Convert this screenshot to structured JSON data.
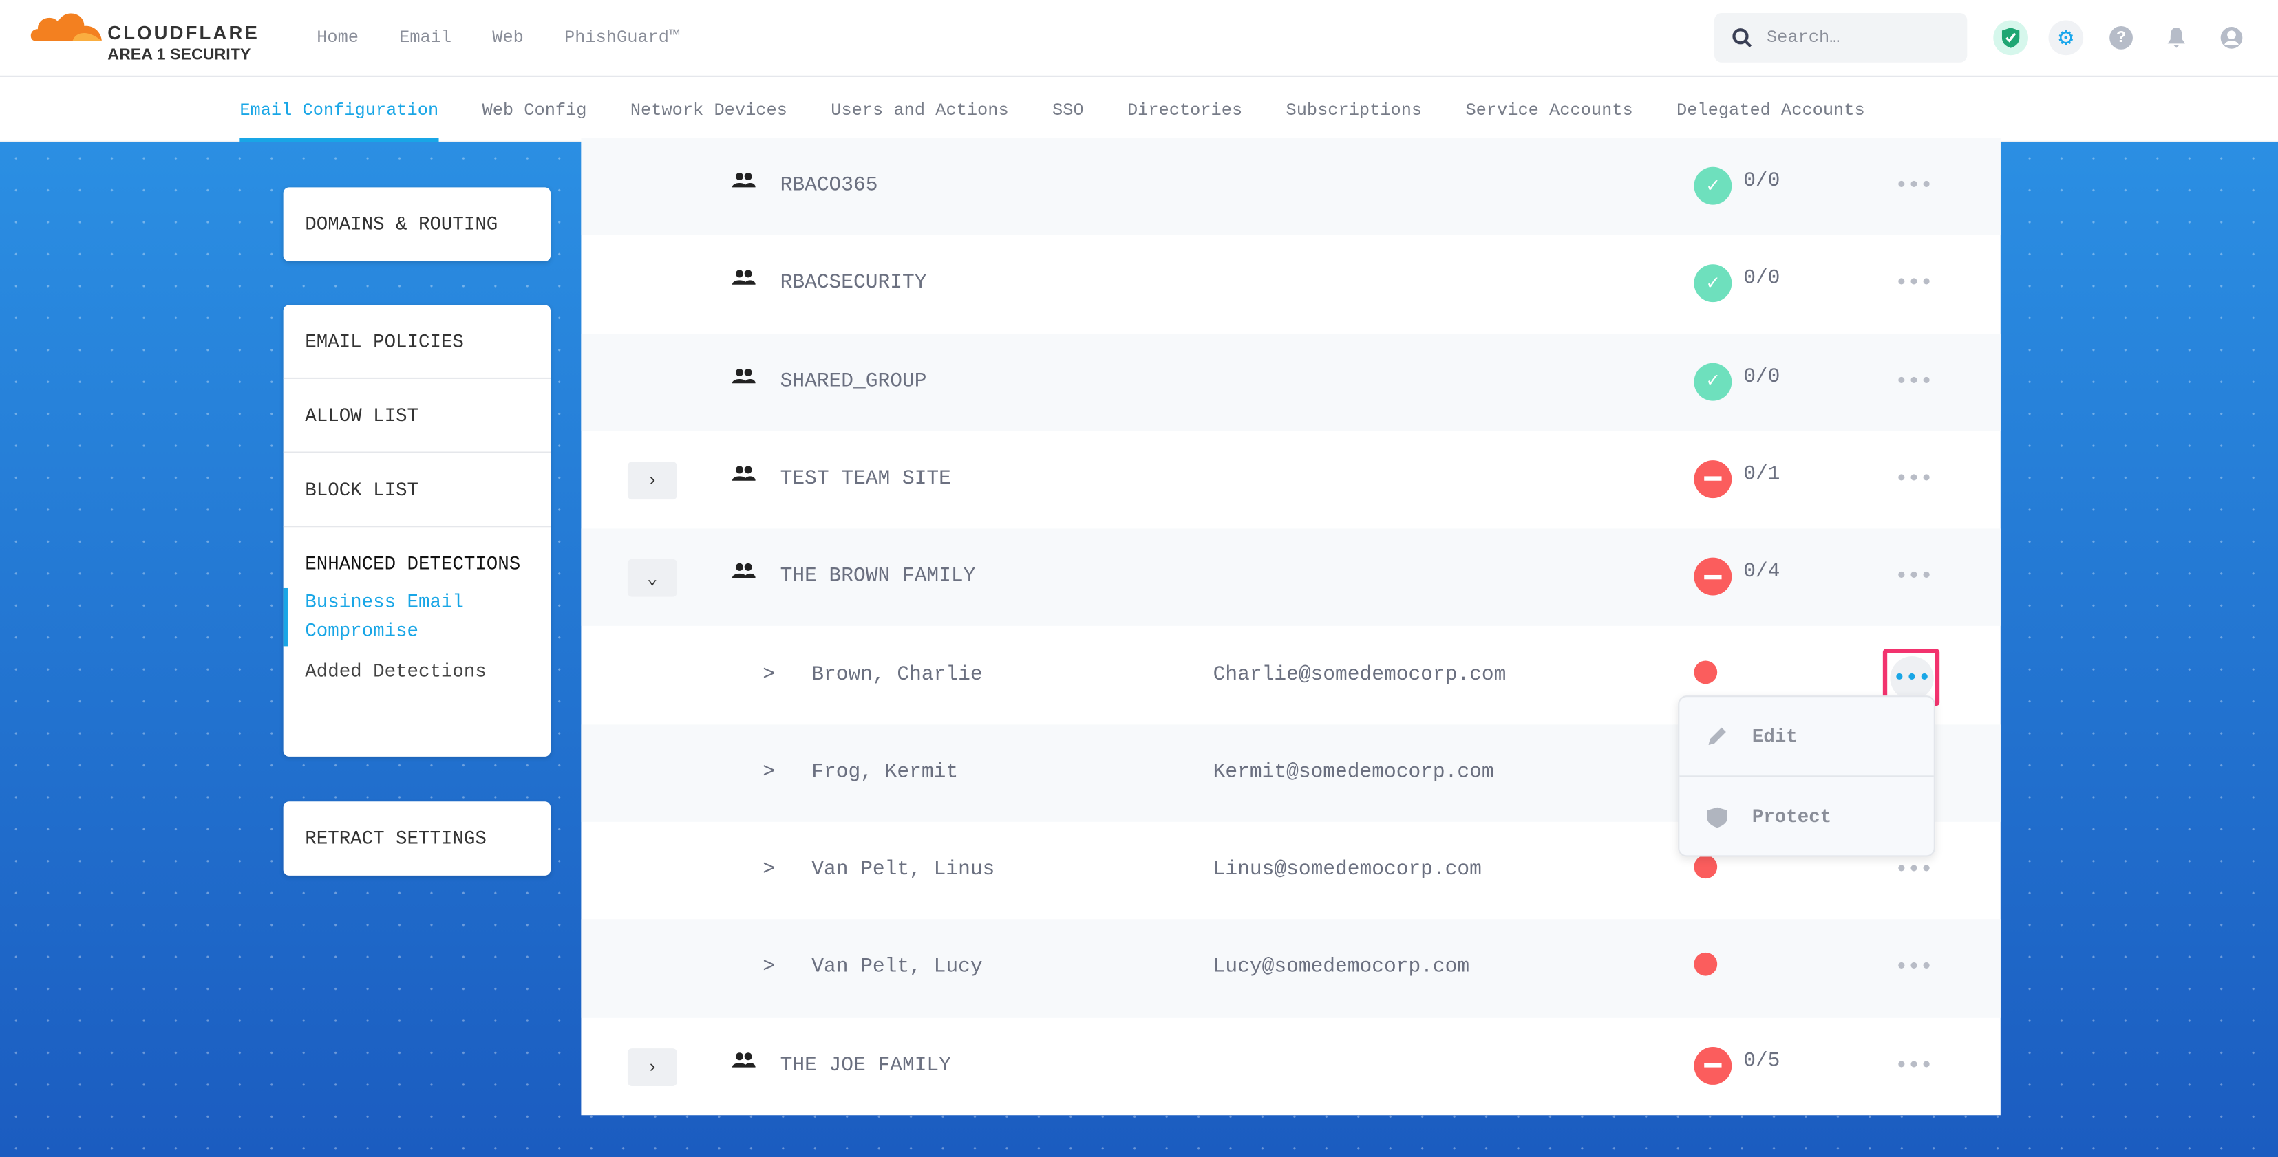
{
  "brand": {
    "name": "CLOUDFLARE",
    "product": "AREA 1 SECURITY",
    "colors": {
      "accent": "#19a6e6",
      "error": "#fb5d5d",
      "success": "#6ee0bd",
      "highlight": "#f2336e"
    }
  },
  "topnav": [
    "Home",
    "Email",
    "Web",
    "PhishGuard™"
  ],
  "search": {
    "placeholder": "Search…"
  },
  "header_icons": [
    "shield-check-icon",
    "gear-icon",
    "help-icon",
    "bell-icon",
    "user-icon"
  ],
  "tabs": [
    "Email Configuration",
    "Web Config",
    "Network Devices",
    "Users and Actions",
    "SSO",
    "Directories",
    "Subscriptions",
    "Service Accounts",
    "Delegated Accounts"
  ],
  "active_tab": "Email Configuration",
  "sidebar": {
    "card1": [
      "DOMAINS & ROUTING"
    ],
    "card2": {
      "items": [
        "EMAIL POLICIES",
        "ALLOW LIST",
        "BLOCK LIST"
      ],
      "section": "ENHANCED DETECTIONS",
      "subitems": [
        "Business Email Compromise",
        "Added Detections"
      ],
      "active": "Business Email Compromise"
    },
    "card3": [
      "RETRACT SETTINGS"
    ]
  },
  "rows": [
    {
      "type": "group",
      "name": "RBACO365",
      "status": "ok",
      "count": "0/0"
    },
    {
      "type": "group",
      "name": "RBACSECURITY",
      "status": "ok",
      "count": "0/0"
    },
    {
      "type": "group",
      "name": "SHARED_GROUP",
      "status": "ok",
      "count": "0/0"
    },
    {
      "type": "group",
      "name": "TEST TEAM SITE",
      "status": "blocked",
      "count": "0/1",
      "expand": "collapsed"
    },
    {
      "type": "group",
      "name": "THE BROWN FAMILY",
      "status": "blocked",
      "count": "0/4",
      "expand": "expanded"
    },
    {
      "type": "person",
      "name": "Brown, Charlie",
      "email": "Charlie@somedemocorp.com",
      "status": "unprotected"
    },
    {
      "type": "person",
      "name": "Frog, Kermit",
      "email": "Kermit@somedemocorp.com",
      "status": "unprotected"
    },
    {
      "type": "person",
      "name": "Van Pelt, Linus",
      "email": "Linus@somedemocorp.com",
      "status": "unprotected"
    },
    {
      "type": "person",
      "name": "Van Pelt, Lucy",
      "email": "Lucy@somedemocorp.com",
      "status": "unprotected"
    },
    {
      "type": "group",
      "name": "THE JOE FAMILY",
      "status": "blocked",
      "count": "0/5",
      "expand": "collapsed"
    }
  ],
  "context_menu": {
    "items": [
      {
        "label": "Edit",
        "icon": "pencil-icon"
      },
      {
        "label": "Protect",
        "icon": "shield-icon"
      }
    ]
  },
  "person_prefix": ">"
}
